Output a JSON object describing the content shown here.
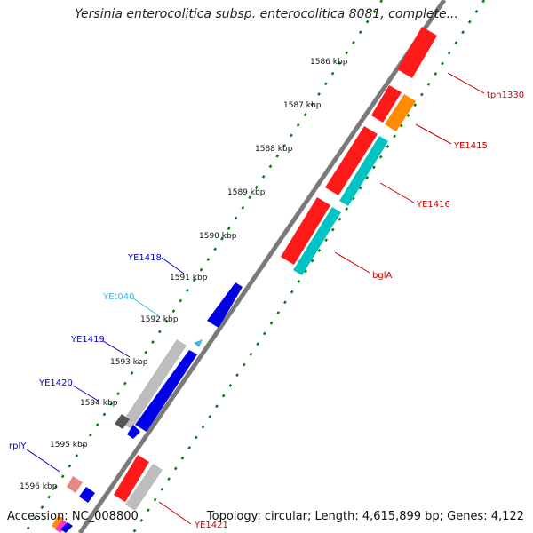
{
  "title": "Yersinia enterocolitica subsp. enterocolitica 8081, complete...",
  "accession": "Accession: NC_008800",
  "summary": "Topology: circular; Length: 4,615,899 bp; Genes: 4,122",
  "ticks": [
    "1586 kbp",
    "1587 kbp",
    "1588 kbp",
    "1589 kbp",
    "1590 kbp",
    "1591 kbp",
    "1592 kbp",
    "1593 kbp",
    "1594 kbp",
    "1595 kbp",
    "1596 kbp"
  ],
  "colors": {
    "backbone": "#7f7f7f",
    "forward_gene": "#ff0000",
    "reverse_gene": "#0000ff",
    "cyan_gene": "#00c8c8",
    "orange_gene": "#ff8c00",
    "grey_gene": "#bfbfbf",
    "tick_dots": "#008000"
  },
  "gene_labels": [
    {
      "name": "tpn1330",
      "color": "#cc0000"
    },
    {
      "name": "YE1415",
      "color": "#cc0000"
    },
    {
      "name": "YE1416",
      "color": "#cc0000"
    },
    {
      "name": "bglA",
      "color": "#cc0000"
    },
    {
      "name": "YE1418",
      "color": "#0000cc"
    },
    {
      "name": "YEt040",
      "color": "#33bbee"
    },
    {
      "name": "YE1419",
      "color": "#0000cc"
    },
    {
      "name": "YE1420",
      "color": "#0000cc"
    },
    {
      "name": "rplY",
      "color": "#0000cc"
    },
    {
      "name": "YE1421",
      "color": "#cc0000"
    }
  ]
}
